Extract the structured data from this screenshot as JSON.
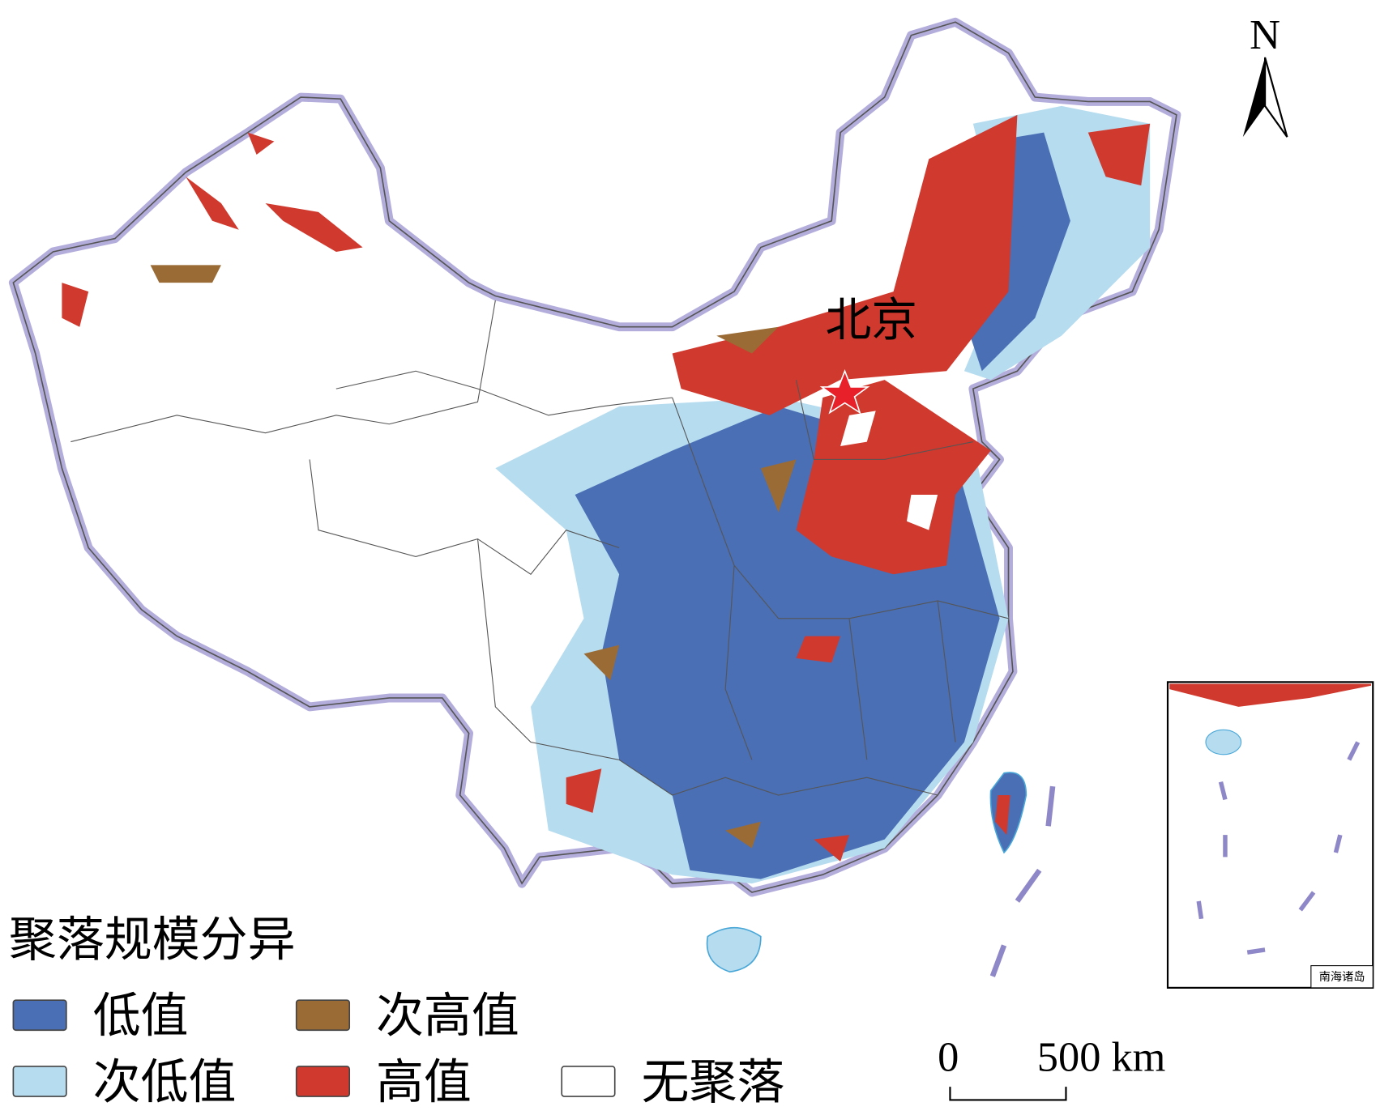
{
  "map": {
    "capital": "北京",
    "north": "N",
    "legend": {
      "title": "聚落规模分异",
      "items": [
        {
          "label": "低值",
          "color": "#4a6fb5"
        },
        {
          "label": "次高值",
          "color": "#9b6b35"
        },
        {
          "label": "次低值",
          "color": "#b6dcef"
        },
        {
          "label": "高值",
          "color": "#d0392d"
        },
        {
          "label": "无聚落",
          "color": "#ffffff"
        }
      ]
    },
    "scale_bar": {
      "start": "0",
      "end": "500 km"
    },
    "inset": {
      "label": "南海诸岛"
    }
  }
}
